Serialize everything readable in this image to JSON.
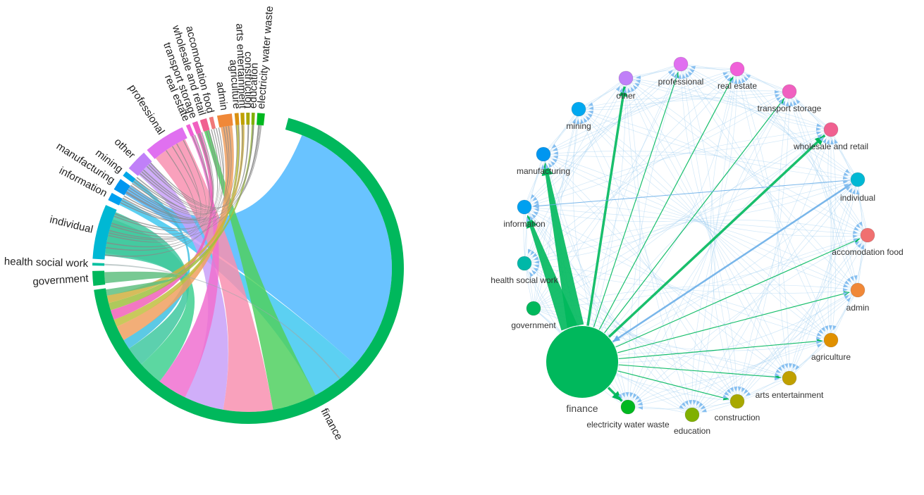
{
  "chord": {
    "sectors": [
      {
        "id": "finance",
        "label": "finance",
        "color": "#00b85c"
      },
      {
        "id": "government",
        "label": "government",
        "color": "#00b85c"
      },
      {
        "id": "health_social_work",
        "label": "health social work",
        "color": "#00c0a0"
      },
      {
        "id": "individual",
        "label": "individual",
        "color": "#00b8d4"
      },
      {
        "id": "information",
        "label": "information",
        "color": "#00a0f0"
      },
      {
        "id": "manufacturing",
        "label": "manufacturing",
        "color": "#0096f0"
      },
      {
        "id": "mining",
        "label": "mining",
        "color": "#00a8e8"
      },
      {
        "id": "other",
        "label": "other",
        "color": "#c080f8"
      },
      {
        "id": "professional",
        "label": "professional",
        "color": "#e070f0"
      },
      {
        "id": "real_estate",
        "label": "real estate",
        "color": "#f060d8"
      },
      {
        "id": "transport_storage",
        "label": "transport storage",
        "color": "#f060c0"
      },
      {
        "id": "wholesale_retail",
        "label": "wholesale and retail",
        "color": "#f06090"
      },
      {
        "id": "accomodation_food",
        "label": "accomodation food",
        "color": "#f07878"
      },
      {
        "id": "admin",
        "label": "admin",
        "color": "#f08838"
      },
      {
        "id": "agriculture",
        "label": "agriculture",
        "color": "#d89010"
      },
      {
        "id": "arts_entertainment",
        "label": "arts entertainment",
        "color": "#c0a000"
      },
      {
        "id": "construction",
        "label": "construction",
        "color": "#a8a800"
      },
      {
        "id": "education",
        "label": "education",
        "color": "#80b000"
      },
      {
        "id": "electricity_water_waste",
        "label": "electricity water waste",
        "color": "#00b820"
      }
    ]
  },
  "network": {
    "nodes": [
      {
        "id": "finance",
        "label": "finance",
        "color": "#00b85c",
        "size": "large"
      },
      {
        "id": "government",
        "label": "government",
        "color": "#00b85c"
      },
      {
        "id": "health_social_work",
        "label": "health social work",
        "color": "#00b8a8"
      },
      {
        "id": "information",
        "label": "information",
        "color": "#00a0f0"
      },
      {
        "id": "manufacturing",
        "label": "manufacturing",
        "color": "#0096f0"
      },
      {
        "id": "mining",
        "label": "mining",
        "color": "#00a8f0"
      },
      {
        "id": "other",
        "label": "other",
        "color": "#c080f8"
      },
      {
        "id": "professional",
        "label": "professional",
        "color": "#e070f0"
      },
      {
        "id": "real_estate",
        "label": "real estate",
        "color": "#f060d8"
      },
      {
        "id": "transport_storage",
        "label": "transport storage",
        "color": "#f060c0"
      },
      {
        "id": "wholesale_retail",
        "label": "wholesale and retail",
        "color": "#f06090"
      },
      {
        "id": "individual",
        "label": "individual",
        "color": "#00b8d4"
      },
      {
        "id": "accomodation_food",
        "label": "accomodation food",
        "color": "#f07070"
      },
      {
        "id": "admin",
        "label": "admin",
        "color": "#f08838"
      },
      {
        "id": "agriculture",
        "label": "agriculture",
        "color": "#e09000"
      },
      {
        "id": "arts_entertainment",
        "label": "arts entertainment",
        "color": "#c0a000"
      },
      {
        "id": "construction",
        "label": "construction",
        "color": "#a8a800"
      },
      {
        "id": "education",
        "label": "education",
        "color": "#80b000"
      },
      {
        "id": "electricity_water_waste",
        "label": "electricity water waste",
        "color": "#00b820"
      }
    ],
    "edge_color": "#9ccbf0",
    "highlight_edges": [
      {
        "from": "finance",
        "to": "manufacturing",
        "weight": "heavy"
      },
      {
        "from": "finance",
        "to": "information",
        "weight": "heavy"
      },
      {
        "from": "finance",
        "to": "other",
        "weight": "medium"
      },
      {
        "from": "finance",
        "to": "professional",
        "weight": "light"
      },
      {
        "from": "finance",
        "to": "real_estate",
        "weight": "light"
      },
      {
        "from": "finance",
        "to": "transport_storage",
        "weight": "light"
      },
      {
        "from": "finance",
        "to": "wholesale_retail",
        "weight": "medium"
      },
      {
        "from": "finance",
        "to": "electricity_water_waste",
        "weight": "medium"
      },
      {
        "from": "finance",
        "to": "arts_entertainment",
        "weight": "light"
      },
      {
        "from": "finance",
        "to": "construction",
        "weight": "light"
      },
      {
        "from": "finance",
        "to": "admin",
        "weight": "light"
      },
      {
        "from": "finance",
        "to": "accomodation_food",
        "weight": "light"
      },
      {
        "from": "finance",
        "to": "agriculture",
        "weight": "light"
      },
      {
        "from": "individual",
        "to": "finance",
        "weight": "blue"
      },
      {
        "from": "individual",
        "to": "information",
        "weight": "blue-thin"
      }
    ]
  }
}
